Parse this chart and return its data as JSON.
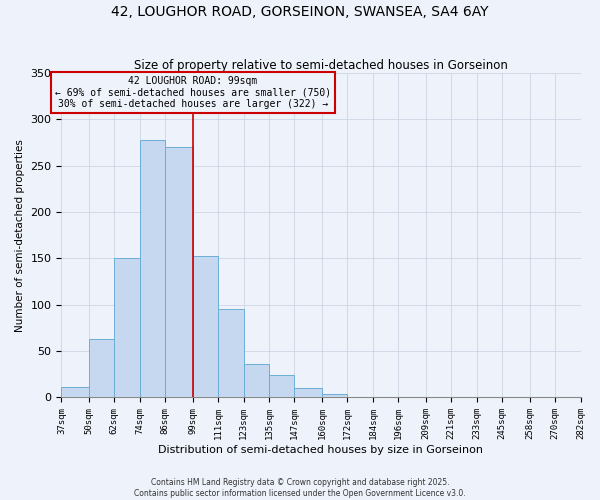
{
  "title": "42, LOUGHOR ROAD, GORSEINON, SWANSEA, SA4 6AY",
  "subtitle": "Size of property relative to semi-detached houses in Gorseinon",
  "xlabel": "Distribution of semi-detached houses by size in Gorseinon",
  "ylabel": "Number of semi-detached properties",
  "bin_edges": [
    37,
    50,
    62,
    74,
    86,
    99,
    111,
    123,
    135,
    147,
    160,
    172,
    184,
    196,
    209,
    221,
    233,
    245,
    258,
    270,
    282
  ],
  "bin_labels": [
    "37sqm",
    "50sqm",
    "62sqm",
    "74sqm",
    "86sqm",
    "99sqm",
    "111sqm",
    "123sqm",
    "135sqm",
    "147sqm",
    "160sqm",
    "172sqm",
    "184sqm",
    "196sqm",
    "209sqm",
    "221sqm",
    "233sqm",
    "245sqm",
    "258sqm",
    "270sqm",
    "282sqm"
  ],
  "counts": [
    11,
    63,
    150,
    278,
    270,
    153,
    96,
    36,
    24,
    10,
    4,
    1,
    1,
    0,
    0,
    0,
    0,
    0,
    0,
    0
  ],
  "bar_color": "#C5D8F0",
  "bar_edge_color": "#6BAED6",
  "property_value": 99,
  "vline_color": "#CC0000",
  "annotation_title": "42 LOUGHOR ROAD: 99sqm",
  "annotation_line1": "← 69% of semi-detached houses are smaller (750)",
  "annotation_line2": "30% of semi-detached houses are larger (322) →",
  "annotation_box_color": "#CC0000",
  "ylim": [
    0,
    350
  ],
  "footer1": "Contains HM Land Registry data © Crown copyright and database right 2025.",
  "footer2": "Contains public sector information licensed under the Open Government Licence v3.0.",
  "background_color": "#EEF2FA"
}
